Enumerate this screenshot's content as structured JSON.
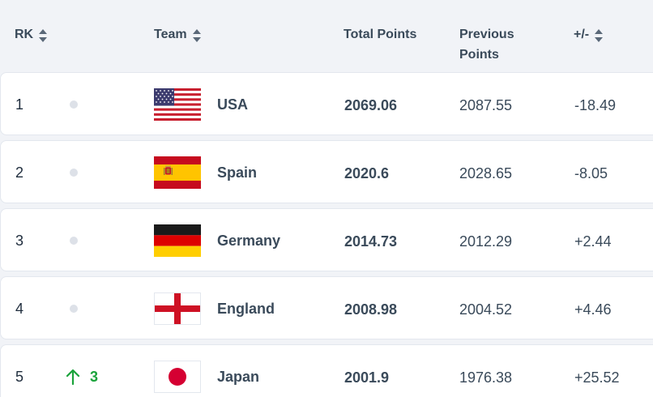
{
  "header": {
    "rank_label": "RK",
    "team_label": "Team",
    "total_label": "Total Points",
    "previous_label_line1": "Previous",
    "previous_label_line2": "Points",
    "diff_label": "+/-"
  },
  "rows": [
    {
      "rank": "1",
      "team": "USA",
      "flag": "usa-flag",
      "total": "2069.06",
      "previous": "2087.55",
      "diff": "-18.49",
      "movement": ""
    },
    {
      "rank": "2",
      "team": "Spain",
      "flag": "spain-flag",
      "total": "2020.6",
      "previous": "2028.65",
      "diff": "-8.05",
      "movement": ""
    },
    {
      "rank": "3",
      "team": "Germany",
      "flag": "germany-flag",
      "total": "2014.73",
      "previous": "2012.29",
      "diff": "+2.44",
      "movement": ""
    },
    {
      "rank": "4",
      "team": "England",
      "flag": "england-flag",
      "total": "2008.98",
      "previous": "2004.52",
      "diff": "+4.46",
      "movement": ""
    },
    {
      "rank": "5",
      "team": "Japan",
      "flag": "japan-flag",
      "total": "2001.9",
      "previous": "1976.38",
      "diff": "+25.52",
      "movement": "3"
    }
  ],
  "colors": {
    "movement_up": "#1aa33b",
    "text": "#3a4a5a",
    "background": "#f1f3f7"
  }
}
